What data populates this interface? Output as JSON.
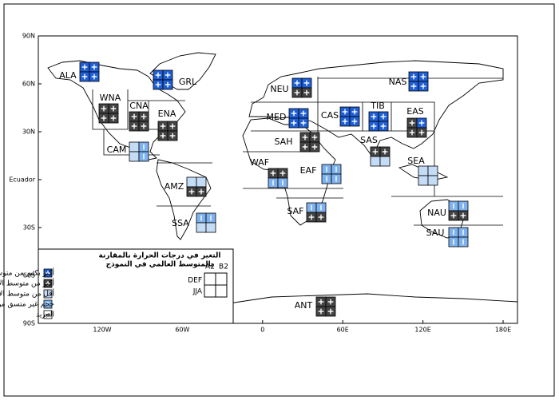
{
  "axes": {
    "lat_labels": [
      "90N",
      "60N",
      "30N",
      "Ecuador",
      "30S",
      "60S",
      "90S"
    ],
    "lon_labels": [
      "120W",
      "60W",
      "0",
      "60E",
      "120E",
      "180E"
    ]
  },
  "regions": [
    {
      "label": "ALA"
    },
    {
      "label": "GRL"
    },
    {
      "label": "WNA"
    },
    {
      "label": "CNA"
    },
    {
      "label": "ENA"
    },
    {
      "label": "CAM"
    },
    {
      "label": "AMZ"
    },
    {
      "label": "SSA"
    },
    {
      "label": "NEU"
    },
    {
      "label": "MED"
    },
    {
      "label": "SAH"
    },
    {
      "label": "WAF"
    },
    {
      "label": "EAF"
    },
    {
      "label": "SAF"
    },
    {
      "label": "CAS"
    },
    {
      "label": "TIB"
    },
    {
      "label": "NAS"
    },
    {
      "label": "EAS"
    },
    {
      "label": "SAS"
    },
    {
      "label": "SEA"
    },
    {
      "label": "NAU"
    },
    {
      "label": "SAU"
    },
    {
      "label": "ANT"
    }
  ],
  "legend": {
    "title": [
      "التغير في درجات الحرارة بالمقارنة",
      "بالمتوسط العالمي في النموذج"
    ],
    "items": [
      "أكبر بكثير من متوسط الاحترار",
      "أكبر من متوسط الاحترار",
      "أقل من متوسط الاحترار",
      "حجم غير متسق من الاحترار",
      "التبريد"
    ],
    "scenarios": [
      "A2",
      "B2"
    ],
    "seasons": [
      "DEF",
      "JJA"
    ]
  }
}
